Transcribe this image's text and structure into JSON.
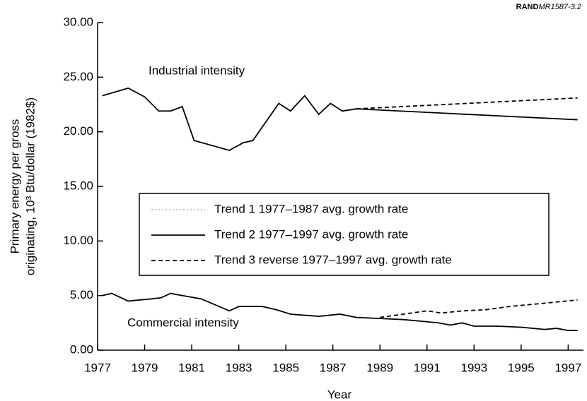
{
  "chart_data": {
    "type": "line",
    "source": [
      "RAND",
      "MR1587-3.2"
    ],
    "xlabel": "Year",
    "ylabel": [
      "Primary energy per gross",
      "originating, 10³ Btu/dollar (1982$)"
    ],
    "annotations": [
      "Industrial intensity",
      "Commercial intensity"
    ],
    "xlim": [
      1977,
      1997.65
    ],
    "ylim": [
      0,
      30
    ],
    "xticks": [
      1977,
      1979,
      1981,
      1983,
      1985,
      1987,
      1989,
      1991,
      1993,
      1995,
      1997
    ],
    "yticks": [
      {
        "value": 0,
        "label": "0.00"
      },
      {
        "value": 5,
        "label": "5.00"
      },
      {
        "value": 10,
        "label": "10.00"
      },
      {
        "value": 15,
        "label": "15.00"
      },
      {
        "value": 20,
        "label": "20.00"
      },
      {
        "value": 25,
        "label": "25.00"
      },
      {
        "value": 30,
        "label": "30.00"
      }
    ],
    "legend": [
      {
        "name": "Trend 1 1977–1987 avg. growth rate",
        "color": "#bbbbbb",
        "dash": "2,3"
      },
      {
        "name": "Trend 2 1977–1997 avg. growth rate",
        "color": "#000000",
        "dash": "none"
      },
      {
        "name": "Trend 3 reverse 1977–1997 avg. growth rate",
        "color": "#000000",
        "dash": "6,4"
      }
    ],
    "lines": [
      {
        "color": "#000000",
        "dash": "none",
        "x": [
          1977.2,
          1978.3,
          1979,
          1979.6,
          1980.1,
          1980.6,
          1981.1,
          1982.6,
          1983.2,
          1983.6,
          1984.7,
          1985.2,
          1985.8,
          1986.4,
          1986.9,
          1987.4,
          1988
        ],
        "values": [
          23.3,
          24.0,
          23.2,
          21.9,
          21.9,
          22.3,
          19.2,
          18.3,
          19.0,
          19.2,
          22.6,
          21.9,
          23.3,
          21.6,
          22.6,
          21.9,
          22.1
        ]
      },
      {
        "color": "#000000",
        "dash": "none",
        "x": [
          1988,
          1997.4
        ],
        "values": [
          22.1,
          21.1
        ]
      },
      {
        "color": "#000000",
        "dash": "6,4",
        "x": [
          1988,
          1997.4
        ],
        "values": [
          22.1,
          23.1
        ]
      },
      {
        "color": "#000000",
        "dash": "none",
        "x": [
          1977.2,
          1977.6,
          1978.3,
          1979.3,
          1979.7,
          1980.1,
          1980.6,
          1981.4,
          1982.6,
          1983,
          1984,
          1984.6,
          1985.2,
          1986.4,
          1987.3,
          1988,
          1989,
          1990,
          1991,
          1991.5,
          1992,
          1992.5,
          1993,
          1994,
          1995,
          1996,
          1996.5,
          1997,
          1997.4
        ],
        "values": [
          5.0,
          5.2,
          4.5,
          4.7,
          4.8,
          5.2,
          5.0,
          4.7,
          3.6,
          4.0,
          4.0,
          3.7,
          3.3,
          3.1,
          3.3,
          3.0,
          2.9,
          2.8,
          2.6,
          2.5,
          2.3,
          2.5,
          2.2,
          2.2,
          2.1,
          1.9,
          2.0,
          1.8,
          1.8
        ]
      },
      {
        "color": "#000000",
        "dash": "6,4",
        "x": [
          1989,
          1990,
          1991,
          1991.6,
          1992.5,
          1993.5,
          1994.5,
          1995.5,
          1997.4
        ],
        "values": [
          3.0,
          3.3,
          3.6,
          3.4,
          3.6,
          3.7,
          4.0,
          4.2,
          4.6
        ]
      }
    ]
  }
}
